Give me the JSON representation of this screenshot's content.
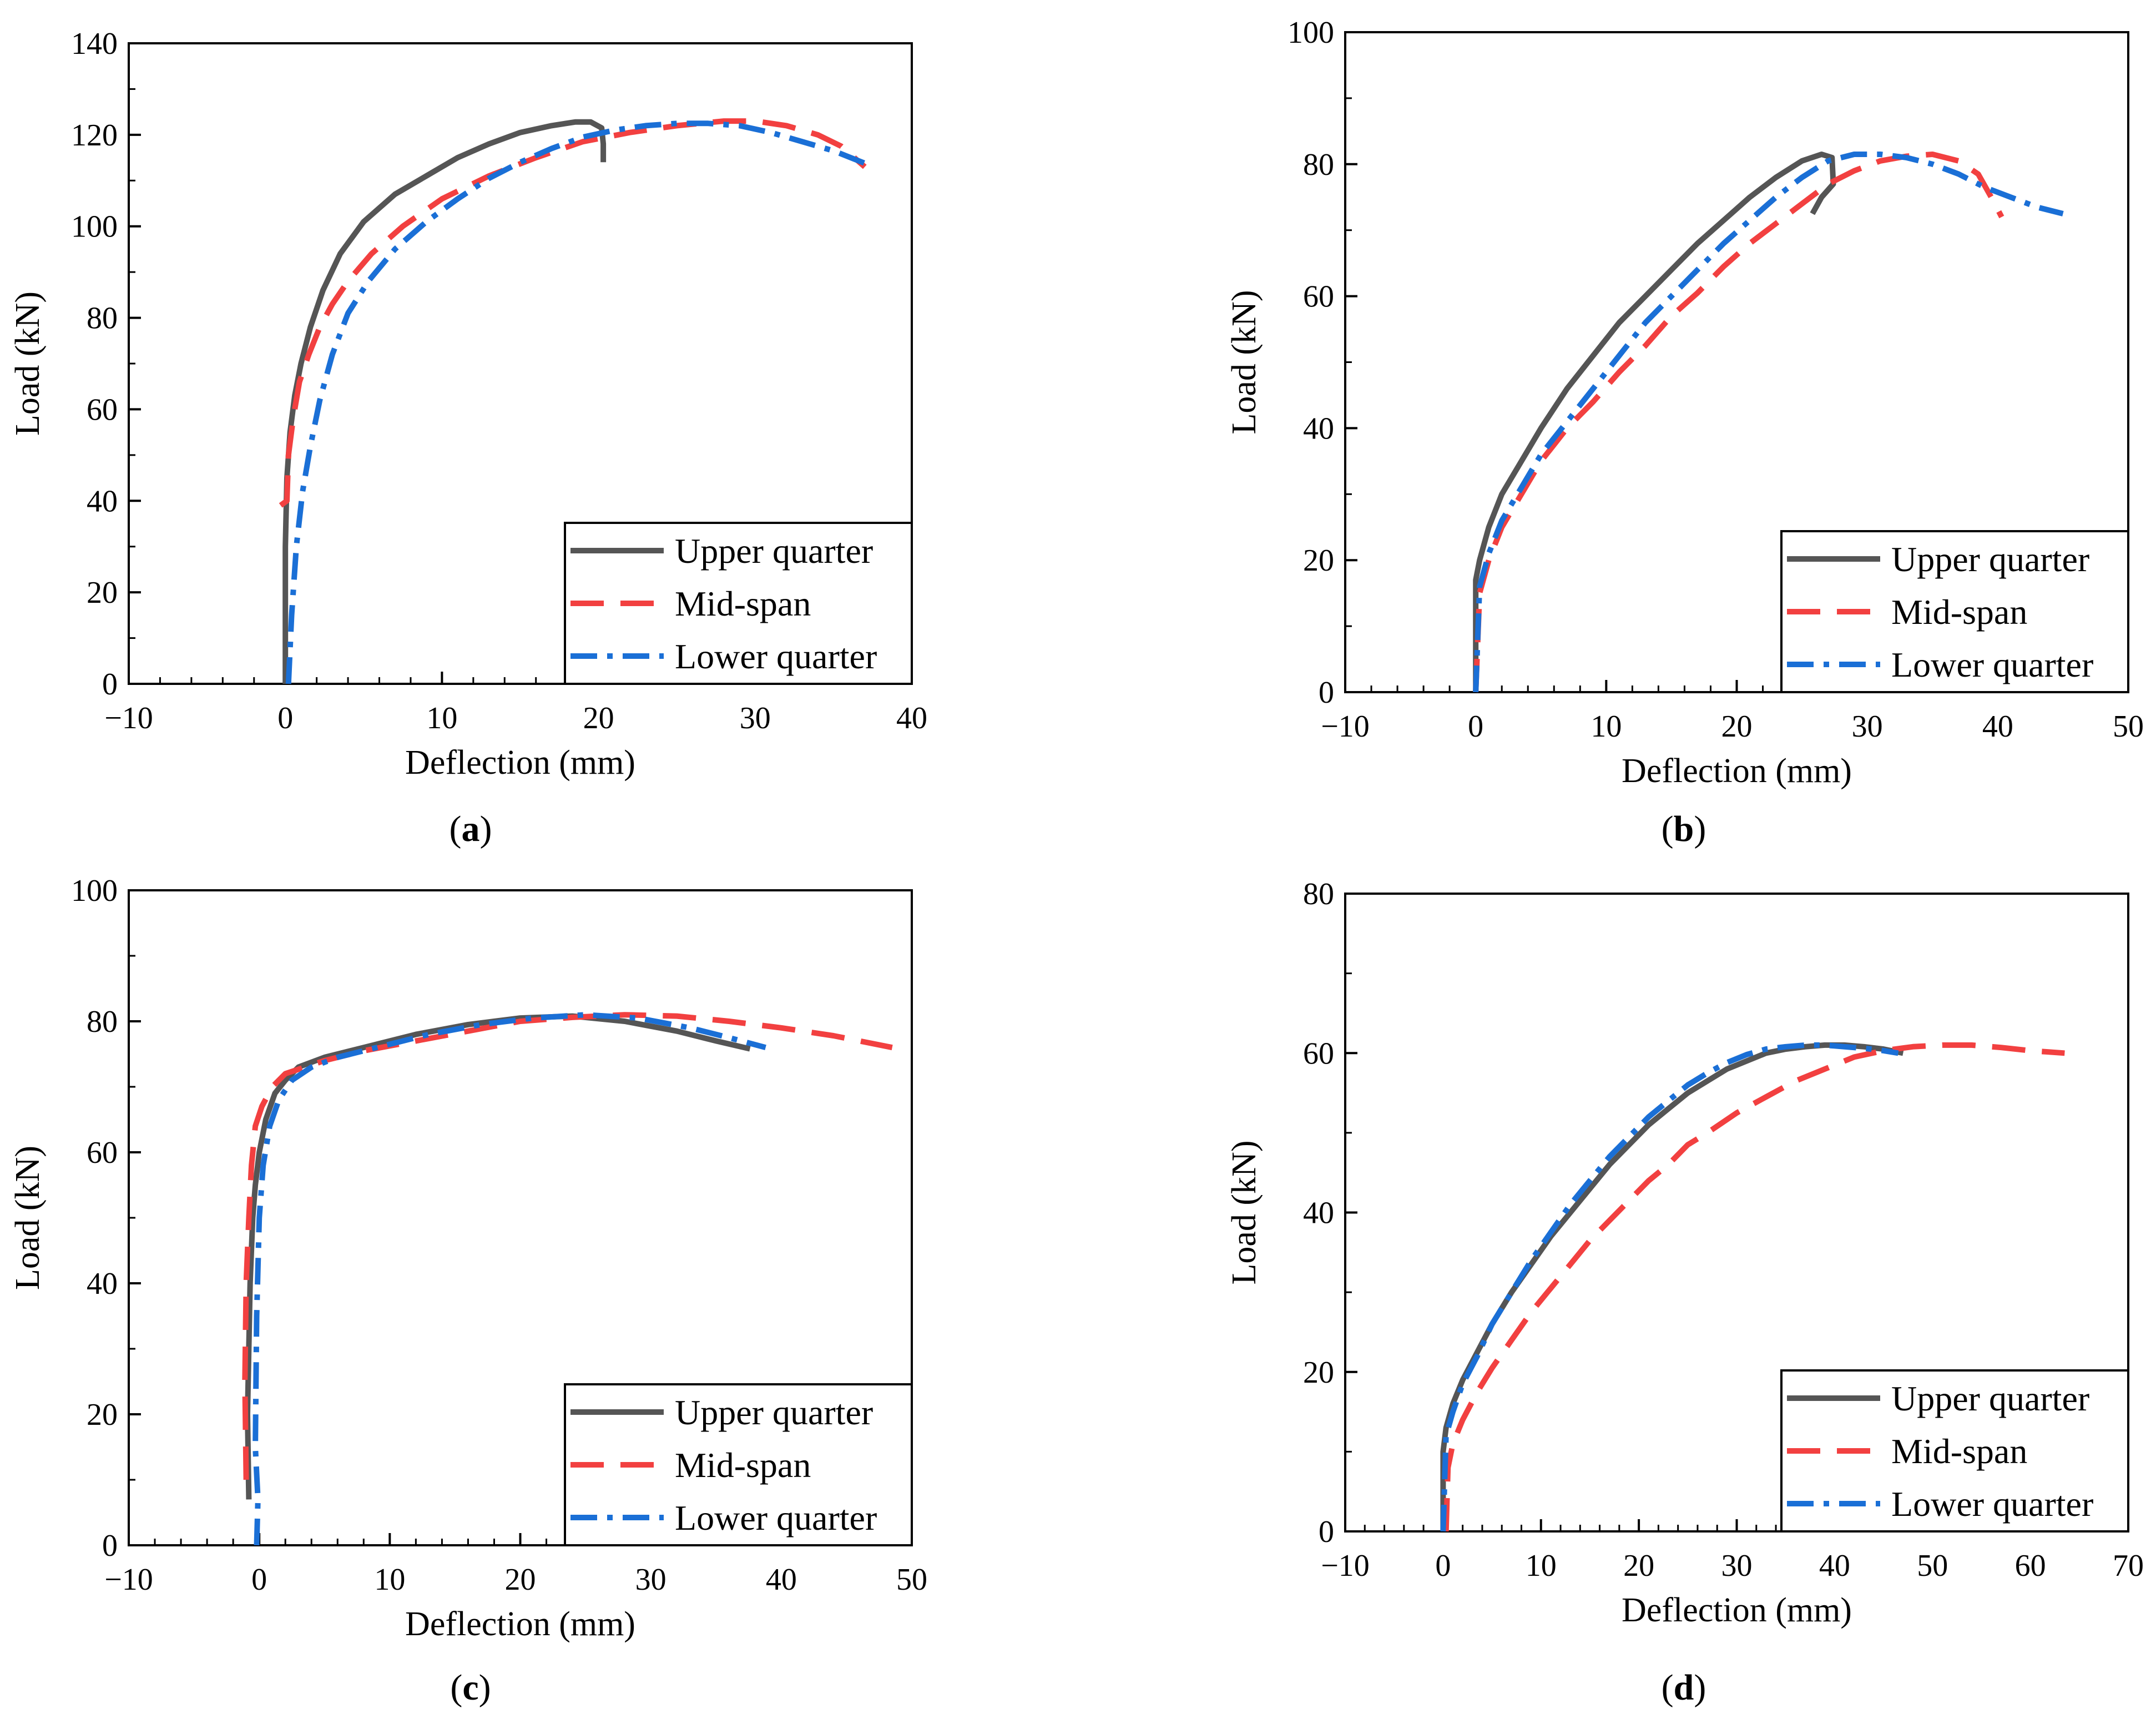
{
  "colors": {
    "upper": "#555555",
    "mid": "#f24040",
    "lower": "#1a6fd6",
    "axis": "#000000",
    "background": "#ffffff"
  },
  "chart_data": [
    {
      "id": "a",
      "type": "line",
      "panel_label": "a",
      "xlabel": "Deflection (mm)",
      "ylabel": "Load (kN)",
      "xlim": [
        -10,
        40
      ],
      "ylim": [
        0,
        140
      ],
      "xticks": [
        -10,
        0,
        10,
        20,
        30,
        40
      ],
      "xtick_labels": [
        "−10",
        "0",
        "10",
        "20",
        "30",
        "40"
      ],
      "yticks": [
        0,
        20,
        40,
        60,
        80,
        100,
        120,
        140
      ],
      "ytick_labels": [
        "0",
        "20",
        "40",
        "60",
        "80",
        "100",
        "120",
        "140"
      ],
      "legend": [
        "Upper quarter",
        "Mid-span",
        "Lower quarter"
      ],
      "legend_position": "bottom-right",
      "series": [
        {
          "name": "Upper quarter",
          "style": "solid",
          "color": "#555555",
          "x": [
            0,
            0,
            0.1,
            0.3,
            0.6,
            1.0,
            1.6,
            2.4,
            3.5,
            5,
            7,
            9,
            11,
            13,
            15,
            17,
            18.5,
            19.5,
            20.2,
            20.3,
            20.3
          ],
          "y": [
            0,
            30,
            45,
            55,
            63,
            70,
            78,
            86,
            94,
            101,
            107,
            111,
            115,
            118,
            120.5,
            122,
            122.8,
            122.8,
            121.5,
            118,
            114
          ]
        },
        {
          "name": "Mid-span",
          "style": "dashed",
          "color": "#f24040",
          "x": [
            -0.3,
            0.1,
            0.2,
            0.5,
            0.9,
            1.5,
            2.2,
            3.0,
            4.0,
            5.5,
            7.5,
            10,
            13,
            16,
            19,
            22,
            25,
            28,
            30,
            32,
            34,
            35.5,
            37
          ],
          "y": [
            39,
            40,
            50,
            58,
            66,
            72,
            78,
            83,
            88,
            94,
            100,
            106,
            111,
            115,
            118.5,
            120.5,
            122,
            123,
            123,
            122,
            120,
            117.5,
            113
          ]
        },
        {
          "name": "Lower quarter",
          "style": "dashdot",
          "color": "#1a6fd6",
          "x": [
            0.2,
            0.4,
            0.7,
            1.1,
            1.6,
            2.2,
            3.0,
            4.0,
            5.3,
            7,
            9,
            11,
            13,
            15,
            17,
            19,
            21,
            23,
            25,
            27,
            29,
            31,
            33,
            35,
            37.2
          ],
          "y": [
            0,
            15,
            30,
            42,
            52,
            62,
            72,
            81,
            88,
            95,
            101,
            106,
            110.5,
            114,
            117,
            119.5,
            121,
            122,
            122.5,
            122.5,
            122,
            120.5,
            118.5,
            116.5,
            113.5
          ]
        }
      ]
    },
    {
      "id": "b",
      "type": "line",
      "panel_label": "b",
      "xlabel": "Deflection (mm)",
      "ylabel": "Load (kN)",
      "xlim": [
        -10,
        50
      ],
      "ylim": [
        0,
        100
      ],
      "xticks": [
        -10,
        0,
        10,
        20,
        30,
        40,
        50
      ],
      "xtick_labels": [
        "−10",
        "0",
        "10",
        "20",
        "30",
        "40",
        "50"
      ],
      "yticks": [
        0,
        20,
        40,
        60,
        80,
        100
      ],
      "ytick_labels": [
        "0",
        "20",
        "40",
        "60",
        "80",
        "100"
      ],
      "legend": [
        "Upper quarter",
        "Mid-span",
        "Lower quarter"
      ],
      "legend_position": "bottom-right",
      "series": [
        {
          "name": "Upper quarter",
          "style": "solid",
          "color": "#555555",
          "x": [
            0,
            0,
            0.3,
            1,
            2,
            3.5,
            5,
            7,
            9,
            11,
            13,
            15,
            17,
            19,
            21,
            23,
            25,
            26.5,
            27.3,
            27.4,
            26.5,
            25.8
          ],
          "y": [
            0,
            17,
            20,
            25,
            30,
            35,
            40,
            46,
            51,
            56,
            60,
            64,
            68,
            71.5,
            75,
            78,
            80.5,
            81.5,
            81,
            77,
            75,
            72.5
          ]
        },
        {
          "name": "Mid-span",
          "style": "dashed",
          "color": "#f24040",
          "x": [
            0,
            0.3,
            1,
            2,
            3.5,
            5,
            7,
            9,
            11,
            13,
            15,
            17,
            19,
            21,
            23,
            25,
            27,
            29,
            31,
            33,
            35,
            37,
            38.5,
            39.5,
            40.3
          ],
          "y": [
            0,
            15,
            20,
            25,
            30,
            35,
            40,
            44,
            48.5,
            52.5,
            57,
            60.5,
            64.5,
            68,
            71,
            74,
            77,
            79,
            80.5,
            81.2,
            81.5,
            80.5,
            78.5,
            75,
            72
          ]
        },
        {
          "name": "Lower quarter",
          "style": "dashdot",
          "color": "#1a6fd6",
          "x": [
            0,
            0.3,
            1,
            2,
            3.5,
            5,
            7,
            9,
            11,
            13,
            15,
            17,
            19,
            21,
            23,
            25,
            27,
            29,
            31,
            33,
            35,
            37,
            39,
            41,
            43,
            45
          ],
          "y": [
            0,
            16,
            21,
            26,
            31,
            36,
            41,
            46,
            51,
            56,
            60,
            64,
            68,
            71.5,
            75,
            78,
            80.5,
            81.5,
            81.5,
            81,
            80,
            78.5,
            76.5,
            75,
            73.5,
            72.5
          ]
        }
      ]
    },
    {
      "id": "c",
      "type": "line",
      "panel_label": "c",
      "xlabel": "Deflection (mm)",
      "ylabel": "Load (kN)",
      "xlim": [
        -10,
        50
      ],
      "ylim": [
        0,
        100
      ],
      "xticks": [
        -10,
        0,
        10,
        20,
        30,
        40,
        50
      ],
      "xtick_labels": [
        "−10",
        "0",
        "10",
        "20",
        "30",
        "40",
        "50"
      ],
      "yticks": [
        0,
        20,
        40,
        60,
        80,
        100
      ],
      "ytick_labels": [
        "0",
        "20",
        "40",
        "60",
        "80",
        "100"
      ],
      "legend": [
        "Upper quarter",
        "Mid-span",
        "Lower quarter"
      ],
      "legend_position": "bottom-right",
      "series": [
        {
          "name": "Upper quarter",
          "style": "solid",
          "color": "#555555",
          "x": [
            -0.8,
            -0.9,
            -0.7,
            -0.5,
            -0.3,
            0,
            0.5,
            1.2,
            2,
            3,
            5,
            8,
            12,
            16,
            20,
            24,
            28,
            32,
            35,
            37.6
          ],
          "y": [
            7,
            20,
            40,
            50,
            55,
            60,
            65,
            69,
            71,
            73,
            74.5,
            76,
            78,
            79.5,
            80.5,
            80.8,
            80,
            78.5,
            77,
            75.8
          ]
        },
        {
          "name": "Mid-span",
          "style": "dashed",
          "color": "#f24040",
          "x": [
            -1.0,
            -1.1,
            -1.0,
            -0.8,
            -0.6,
            -0.3,
            0.2,
            1,
            2,
            3.5,
            5,
            8,
            12,
            16,
            20,
            24,
            28,
            32,
            36,
            40,
            44,
            48.5
          ],
          "y": [
            10,
            25,
            40,
            50,
            58,
            64,
            67,
            70,
            72,
            73,
            74,
            75.5,
            77,
            78.5,
            80,
            80.6,
            81,
            80.8,
            80,
            79,
            77.8,
            76
          ]
        },
        {
          "name": "Lower quarter",
          "style": "dashdot",
          "color": "#1a6fd6",
          "x": [
            -0.2,
            -0.1,
            -0.3,
            -0.2,
            0,
            0.3,
            0.8,
            1.5,
            2.5,
            4,
            6,
            9,
            13,
            17,
            21,
            25,
            29,
            33,
            36,
            38.8
          ],
          "y": [
            0,
            7,
            15,
            35,
            50,
            58,
            64,
            68,
            71,
            73,
            74.5,
            76,
            78,
            79.5,
            80.5,
            81,
            80.5,
            79,
            77.5,
            76
          ]
        }
      ]
    },
    {
      "id": "d",
      "type": "line",
      "panel_label": "d",
      "xlabel": "Deflection (mm)",
      "ylabel": "Load (kN)",
      "xlim": [
        -10,
        70
      ],
      "ylim": [
        0,
        80
      ],
      "xticks": [
        -10,
        0,
        10,
        20,
        30,
        40,
        50,
        60,
        70
      ],
      "xtick_labels": [
        "−10",
        "0",
        "10",
        "20",
        "30",
        "40",
        "50",
        "60",
        "70"
      ],
      "yticks": [
        0,
        20,
        40,
        60,
        80
      ],
      "ytick_labels": [
        "0",
        "20",
        "40",
        "60",
        "80"
      ],
      "legend": [
        "Upper quarter",
        "Mid-span",
        "Lower quarter"
      ],
      "legend_position": "bottom-right",
      "series": [
        {
          "name": "Upper quarter",
          "style": "solid",
          "color": "#555555",
          "x": [
            0,
            0,
            0.3,
            1,
            2,
            3.5,
            5,
            7,
            9,
            11,
            13,
            15,
            17,
            19,
            21,
            23,
            25,
            27,
            29,
            31,
            33,
            35,
            37,
            39,
            41,
            43,
            45,
            47
          ],
          "y": [
            0,
            10,
            13,
            16,
            19,
            22.5,
            26,
            30,
            33.5,
            37,
            40,
            43,
            46,
            48.5,
            51,
            53,
            55,
            56.5,
            58,
            59,
            60,
            60.5,
            60.8,
            61,
            61,
            60.8,
            60.5,
            60
          ]
        },
        {
          "name": "Mid-span",
          "style": "dashed",
          "color": "#f24040",
          "x": [
            0.3,
            0.5,
            1,
            2,
            3.5,
            5,
            7,
            9,
            11,
            13,
            15,
            17,
            19,
            21,
            23,
            25,
            27,
            30,
            33,
            36,
            39,
            42,
            45,
            48,
            51,
            54,
            57,
            60,
            63.5
          ],
          "y": [
            0,
            8,
            11,
            14,
            17.5,
            20.5,
            24,
            27.5,
            30.5,
            33.5,
            36.5,
            39,
            41.5,
            44,
            46,
            48.5,
            50,
            52.5,
            54.5,
            56.5,
            58,
            59.5,
            60.3,
            60.8,
            61,
            61,
            60.7,
            60.3,
            60
          ]
        },
        {
          "name": "Lower quarter",
          "style": "dashdot",
          "color": "#1a6fd6",
          "x": [
            0,
            0.3,
            1,
            2,
            3.5,
            5,
            7,
            9,
            11,
            13,
            15,
            17,
            19,
            21,
            23,
            25,
            27,
            29,
            31,
            33,
            35,
            37,
            39,
            41,
            43,
            45,
            46.5
          ],
          "y": [
            0,
            12,
            15,
            18.5,
            22,
            26,
            30,
            34,
            37.5,
            41,
            44,
            47,
            49.5,
            52,
            54,
            56,
            57.5,
            58.8,
            59.8,
            60.5,
            60.8,
            61,
            61,
            60.8,
            60.6,
            60.3,
            60
          ]
        }
      ]
    }
  ]
}
